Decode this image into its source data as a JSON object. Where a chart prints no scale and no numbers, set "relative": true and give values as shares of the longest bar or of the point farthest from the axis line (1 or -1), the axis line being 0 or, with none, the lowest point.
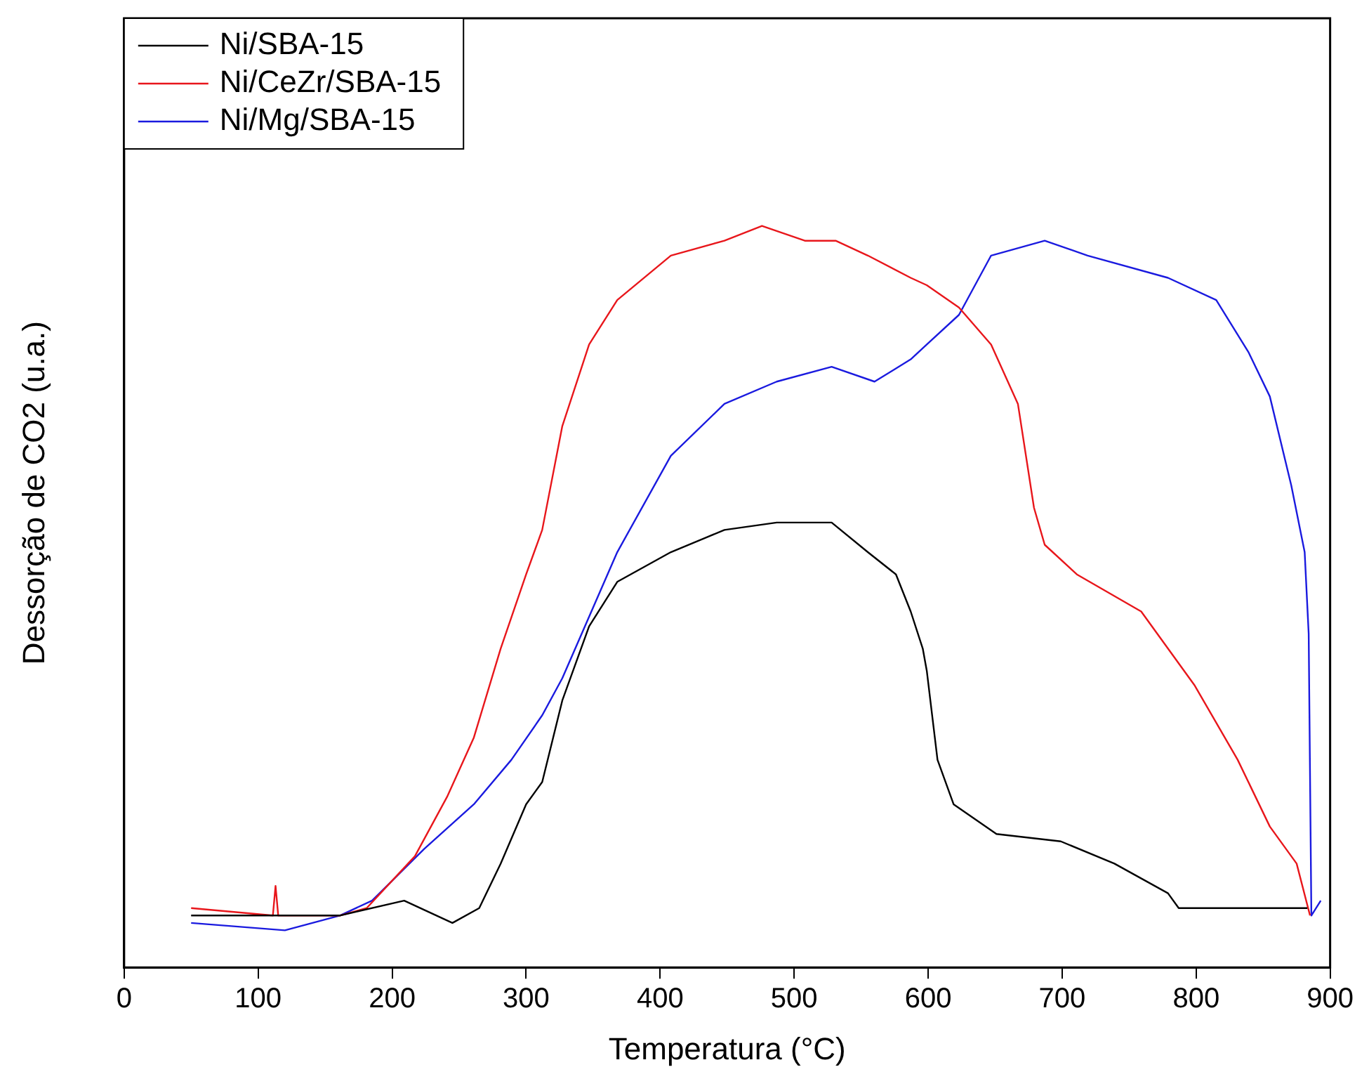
{
  "chart_data": {
    "type": "line",
    "xlabel": "Temperatura (°C)",
    "ylabel": "Dessorção de CO2 (u.a.)",
    "relative": true,
    "xlim": [
      0,
      900
    ],
    "xticks": [
      0,
      100,
      200,
      300,
      400,
      500,
      600,
      700,
      800,
      900
    ],
    "grid": false,
    "legend": "top left",
    "marker": "none",
    "line_style": "solid",
    "series": [
      {
        "name": "Ni/SBA-15",
        "color": "#000000",
        "x": [
          50,
          161,
          209,
          245,
          265,
          281,
          300,
          312,
          327,
          347,
          368,
          408,
          448,
          487,
          528,
          555,
          576,
          587,
          596,
          599,
          607,
          619,
          651,
          699,
          739,
          779,
          787,
          839,
          883
        ],
        "values": [
          0.07,
          0.07,
          0.09,
          0.06,
          0.08,
          0.14,
          0.22,
          0.25,
          0.36,
          0.46,
          0.52,
          0.56,
          0.59,
          0.6,
          0.6,
          0.56,
          0.53,
          0.48,
          0.43,
          0.4,
          0.28,
          0.22,
          0.18,
          0.17,
          0.14,
          0.1,
          0.08,
          0.08,
          0.08
        ]
      },
      {
        "name": "Ni/CeZr/SBA-15",
        "color": "#e8161b",
        "x": [
          50,
          111,
          113,
          115,
          161,
          181,
          217,
          241,
          261,
          281,
          300,
          312,
          327,
          347,
          368,
          408,
          448,
          476,
          508,
          531,
          555,
          587,
          599,
          623,
          647,
          667,
          679,
          687,
          711,
          759,
          799,
          831,
          855,
          875,
          885
        ],
        "values": [
          0.08,
          0.07,
          0.11,
          0.07,
          0.07,
          0.08,
          0.15,
          0.23,
          0.31,
          0.43,
          0.53,
          0.59,
          0.73,
          0.84,
          0.9,
          0.96,
          0.98,
          1.0,
          0.98,
          0.98,
          0.96,
          0.93,
          0.92,
          0.89,
          0.84,
          0.76,
          0.62,
          0.57,
          0.53,
          0.48,
          0.38,
          0.28,
          0.19,
          0.14,
          0.07
        ]
      },
      {
        "name": "Ni/Mg/SBA-15",
        "color": "#1a1adf",
        "x": [
          50,
          120,
          161,
          185,
          224,
          261,
          289,
          312,
          327,
          368,
          408,
          448,
          487,
          528,
          560,
          587,
          599,
          623,
          647,
          687,
          719,
          779,
          815,
          839,
          855,
          871,
          881,
          884,
          886,
          893
        ],
        "values": [
          0.06,
          0.05,
          0.07,
          0.09,
          0.16,
          0.22,
          0.28,
          0.34,
          0.39,
          0.56,
          0.69,
          0.76,
          0.79,
          0.81,
          0.79,
          0.82,
          0.84,
          0.88,
          0.96,
          0.98,
          0.96,
          0.93,
          0.9,
          0.83,
          0.77,
          0.65,
          0.56,
          0.45,
          0.07,
          0.09
        ]
      }
    ]
  }
}
